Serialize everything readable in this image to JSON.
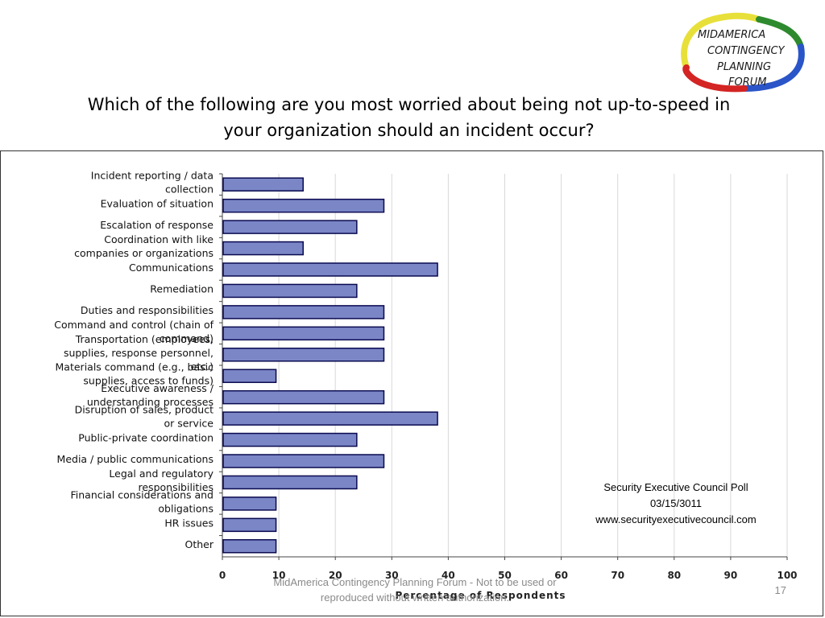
{
  "title": {
    "line1": "Which of the following are you most worried about being not up-to-speed in",
    "line2": "your organization should an incident occur?"
  },
  "logo": {
    "lines": [
      "MIDAMERICA",
      "CONTINGENCY",
      "PLANNING",
      "FORUM"
    ],
    "colors": [
      "#e8e03a",
      "#2e8a2e",
      "#2a55c8",
      "#d42424"
    ]
  },
  "poll_note": {
    "line1": "Security Executive Council Poll",
    "line2": "03/15/3011",
    "line3": "www.securityexecutivecouncil.com"
  },
  "footer": {
    "line1": "MidAmerica Contingency Planning Forum - Not to be used or",
    "line2": "reproduced without written authorization."
  },
  "page_number": "17",
  "chart_data": {
    "type": "bar",
    "orientation": "horizontal",
    "categories": [
      "Incident reporting / data collection",
      "Evaluation of situation",
      "Escalation of response",
      "Coordination with like companies or organizations",
      "Communications",
      "Remediation",
      "Duties and responsibilities",
      "Command and control (chain of command)",
      "Transportation (employees, supplies, response personnel, etc.)",
      "Materials command (e.g., basic supplies, access to funds)",
      "Executive awareness / understanding processes",
      "Disruption of sales, product or service",
      "Public-private coordination",
      "Media / public communications",
      "Legal and regulatory responsibilities",
      "Financial considerations and obligations",
      "HR issues",
      "Other"
    ],
    "category_label_lines": [
      [
        "Incident reporting / data",
        "collection"
      ],
      [
        "Evaluation of situation"
      ],
      [
        "Escalation of response"
      ],
      [
        "Coordination with like",
        "companies or organizations"
      ],
      [
        "Communications"
      ],
      [
        "Remediation"
      ],
      [
        "Duties and responsibilities"
      ],
      [
        "Command and control (chain of",
        "command)"
      ],
      [
        "Transportation (employees,",
        "supplies, response personnel,",
        "etc.)"
      ],
      [
        "Materials command (e.g., basic",
        "supplies, access to funds)"
      ],
      [
        "Executive awareness /",
        "understanding processes"
      ],
      [
        "Disruption of sales, product",
        "or service"
      ],
      [
        "Public-private coordination"
      ],
      [
        "Media / public communications"
      ],
      [
        "Legal and regulatory",
        "responsibilities"
      ],
      [
        "Financial considerations and",
        "obligations"
      ],
      [
        "HR issues"
      ],
      [
        "Other"
      ]
    ],
    "values": [
      14.3,
      28.6,
      23.8,
      14.3,
      38.1,
      23.8,
      28.6,
      28.6,
      28.6,
      9.5,
      28.6,
      38.1,
      23.8,
      28.6,
      23.8,
      9.5,
      9.5,
      9.5
    ],
    "xlim": [
      0,
      100
    ],
    "xticks": [
      0,
      10,
      20,
      30,
      40,
      50,
      60,
      70,
      80,
      90,
      100
    ],
    "xlabel": "Percentage of Respondents",
    "ylabel": "",
    "grid": true,
    "bar_color": "#7b86c6",
    "bar_edge_color": "#0a0a50"
  }
}
